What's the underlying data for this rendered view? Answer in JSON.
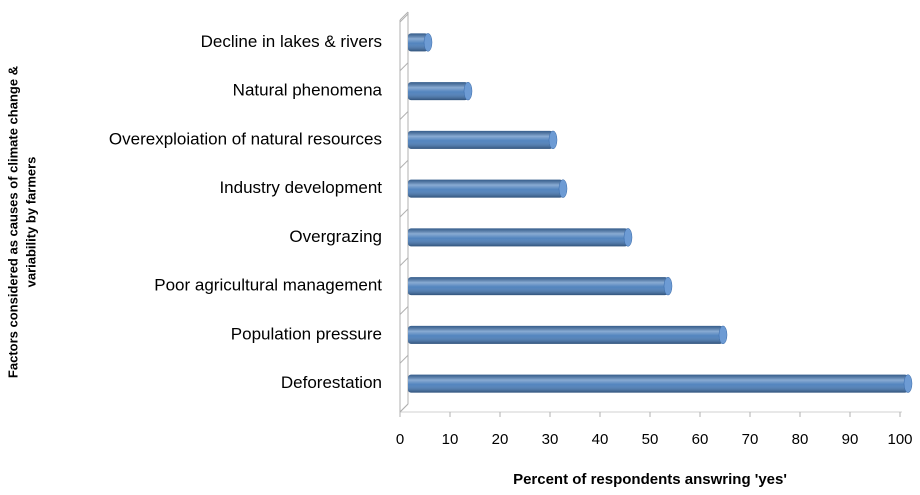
{
  "chart_data": {
    "type": "bar",
    "orientation": "horizontal",
    "xlabel": "Percent of respondents  answring 'yes'",
    "ylabel": [
      "Factors considered as causes of climate change &",
      "variability by farmers"
    ],
    "categories": [
      "Decline in lakes & rivers",
      "Natural  phenomena",
      "Overexploiation of natural resources",
      "Industry development",
      "Overgrazing",
      "Poor agricultural management",
      "Population pressure",
      "Deforestation"
    ],
    "values": [
      4,
      12,
      29,
      31,
      44,
      52,
      63,
      100
    ],
    "color": "#4a7ebb",
    "xlim": [
      0,
      100
    ],
    "xticks": [
      0,
      10,
      20,
      30,
      40,
      50,
      60,
      70,
      80,
      90,
      100
    ]
  }
}
